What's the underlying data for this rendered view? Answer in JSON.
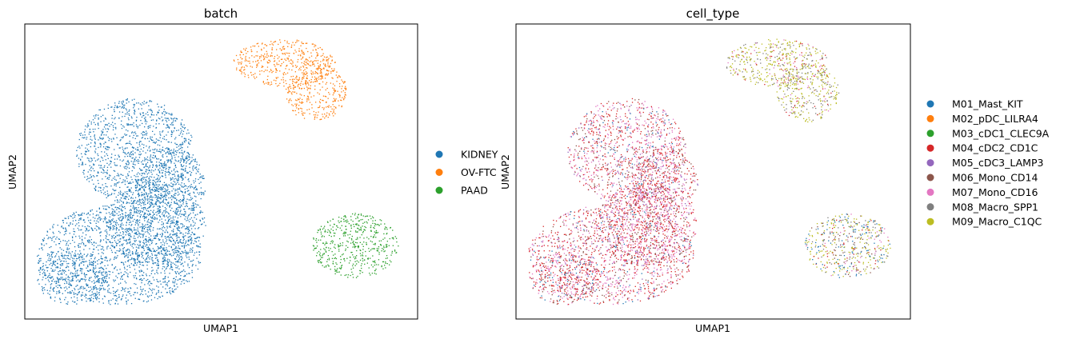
{
  "chart_data": [
    {
      "type": "scatter",
      "title": "batch",
      "xlabel": "UMAP1",
      "ylabel": "UMAP2",
      "xticks": [],
      "yticks": [],
      "xlim": [
        0,
        100
      ],
      "ylim": [
        0,
        100
      ],
      "grid": false,
      "legend_position": "right, outside plot",
      "series": [
        {
          "name": "KIDNEY",
          "color": "#1f77b4",
          "regions": [
            {
              "center": [
                28,
                57
              ],
              "radius": [
                15,
                18
              ]
            },
            {
              "center": [
                37,
                46
              ],
              "radius": [
                9,
                12
              ]
            },
            {
              "center": [
                24,
                22
              ],
              "radius": [
                21,
                17
              ]
            },
            {
              "center": [
                33,
                32
              ],
              "radius": [
                13,
                14
              ]
            },
            {
              "center": [
                12,
                14
              ],
              "radius": [
                9,
                9
              ]
            }
          ]
        },
        {
          "name": "OV-FTC",
          "color": "#ff7f0e",
          "regions": [
            {
              "center": [
                66,
                87
              ],
              "radius": [
                13,
                8
              ]
            },
            {
              "center": [
                74,
                77
              ],
              "radius": [
                8,
                10
              ]
            }
          ]
        },
        {
          "name": "PAAD",
          "color": "#2ca02c",
          "regions": [
            {
              "center": [
                84,
                25
              ],
              "radius": [
                11,
                11
              ]
            }
          ]
        }
      ]
    },
    {
      "type": "scatter",
      "title": "cell_type",
      "xlabel": "UMAP1",
      "ylabel": "UMAP2",
      "xticks": [],
      "yticks": [],
      "xlim": [
        0,
        100
      ],
      "ylim": [
        0,
        100
      ],
      "grid": false,
      "legend_position": "right, outside plot",
      "series": [
        {
          "name": "M01_Mast_KIT",
          "color": "#1f77b4"
        },
        {
          "name": "M02_pDC_LILRA4",
          "color": "#ff7f0e"
        },
        {
          "name": "M03_cDC1_CLEC9A",
          "color": "#2ca02c"
        },
        {
          "name": "M04_cDC2_CD1C",
          "color": "#d62728"
        },
        {
          "name": "M05_cDC3_LAMP3",
          "color": "#9467bd"
        },
        {
          "name": "M06_Mono_CD14",
          "color": "#8c564b"
        },
        {
          "name": "M07_Mono_CD16",
          "color": "#e377c2"
        },
        {
          "name": "M08_Macro_SPP1",
          "color": "#7f7f7f"
        },
        {
          "name": "M09_Macro_C1QC",
          "color": "#bcbd22"
        }
      ],
      "cluster_composition": [
        {
          "center": [
            28,
            57
          ],
          "radius": [
            15,
            18
          ],
          "weights": {
            "M04_cDC2_CD1C": 5,
            "M07_Mono_CD16": 4,
            "M06_Mono_CD14": 2,
            "M05_cDC3_LAMP3": 1,
            "M01_Mast_KIT": 1
          }
        },
        {
          "center": [
            37,
            46
          ],
          "radius": [
            9,
            12
          ],
          "weights": {
            "M04_cDC2_CD1C": 5,
            "M07_Mono_CD16": 4,
            "M06_Mono_CD14": 2,
            "M05_cDC3_LAMP3": 2
          }
        },
        {
          "center": [
            24,
            22
          ],
          "radius": [
            21,
            17
          ],
          "weights": {
            "M04_cDC2_CD1C": 5,
            "M07_Mono_CD16": 4,
            "M06_Mono_CD14": 2,
            "M05_cDC3_LAMP3": 1,
            "M01_Mast_KIT": 1
          }
        },
        {
          "center": [
            33,
            32
          ],
          "radius": [
            13,
            14
          ],
          "weights": {
            "M04_cDC2_CD1C": 5,
            "M07_Mono_CD16": 4,
            "M06_Mono_CD14": 2,
            "M05_cDC3_LAMP3": 1
          }
        },
        {
          "center": [
            12,
            14
          ],
          "radius": [
            9,
            9
          ],
          "weights": {
            "M04_cDC2_CD1C": 5,
            "M07_Mono_CD16": 4,
            "M06_Mono_CD14": 2,
            "M01_Mast_KIT": 1
          }
        },
        {
          "center": [
            66,
            87
          ],
          "radius": [
            13,
            8
          ],
          "weights": {
            "M09_Macro_C1QC": 6,
            "M08_Macro_SPP1": 3,
            "M07_Mono_CD16": 1,
            "M04_cDC2_CD1C": 1
          }
        },
        {
          "center": [
            74,
            77
          ],
          "radius": [
            8,
            10
          ],
          "weights": {
            "M09_Macro_C1QC": 6,
            "M08_Macro_SPP1": 3,
            "M07_Mono_CD16": 1,
            "M04_cDC2_CD1C": 1
          }
        },
        {
          "center": [
            84,
            25
          ],
          "radius": [
            11,
            11
          ],
          "weights": {
            "M09_Macro_C1QC": 4,
            "M01_Mast_KIT": 3,
            "M08_Macro_SPP1": 2,
            "M04_cDC2_CD1C": 1,
            "M07_Mono_CD16": 1,
            "M06_Mono_CD14": 1
          }
        }
      ]
    }
  ]
}
